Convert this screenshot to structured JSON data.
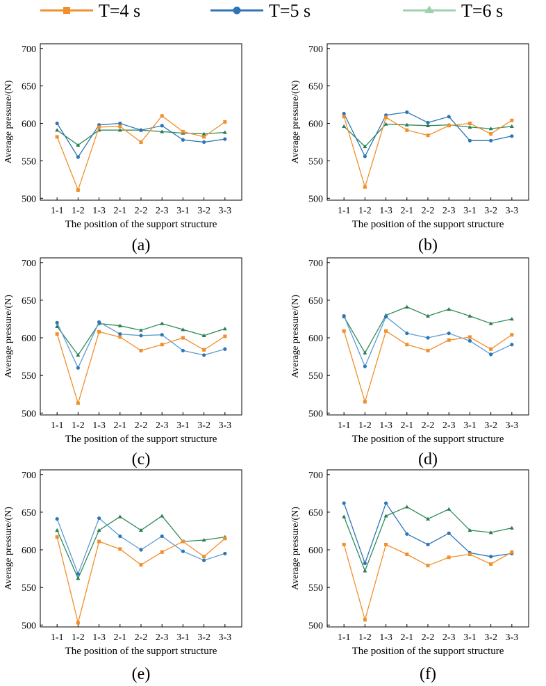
{
  "legend": [
    {
      "label": "T=4 s",
      "color": "#f28e2b",
      "marker": "square"
    },
    {
      "label": "T=5 s",
      "color": "#2e75b6",
      "marker": "circle"
    },
    {
      "label": "T=6 s",
      "color": "#9fd0b0",
      "marker": "triangle"
    }
  ],
  "chart_data": [
    {
      "type": "line",
      "panel_label": "(a)",
      "xlabel": "The position of the support structure",
      "ylabel": "Average pressure/(N)",
      "categories": [
        "1-1",
        "1-2",
        "1-3",
        "2-1",
        "2-2",
        "2-3",
        "3-1",
        "3-2",
        "3-3"
      ],
      "ylim": [
        500,
        700
      ],
      "yticks": [
        500,
        550,
        600,
        650,
        700
      ],
      "series": [
        {
          "name": "T=4 s",
          "color": "#f28e2b",
          "line_color": "#f28e2b",
          "marker": "square",
          "values": [
            582,
            511,
            595,
            596,
            575,
            610,
            589,
            582,
            602
          ]
        },
        {
          "name": "T=5 s",
          "color": "#2e75b6",
          "line_color": "#2e75b6",
          "marker": "circle",
          "values": [
            600,
            555,
            598,
            600,
            591,
            597,
            578,
            575,
            579
          ]
        },
        {
          "name": "T=6 s",
          "color": "#2a7a52",
          "line_color": "#2e8b57",
          "marker": "triangle",
          "values": [
            591,
            571,
            591,
            591,
            591,
            589,
            587,
            586,
            588
          ]
        }
      ]
    },
    {
      "type": "line",
      "panel_label": "(b)",
      "xlabel": "The position of the support structure",
      "ylabel": "Average pressure/(N)",
      "categories": [
        "1-1",
        "1-2",
        "1-3",
        "2-1",
        "2-2",
        "2-3",
        "3-1",
        "3-2",
        "3-3"
      ],
      "ylim": [
        500,
        700
      ],
      "yticks": [
        500,
        550,
        600,
        650,
        700
      ],
      "series": [
        {
          "name": "T=4 s",
          "color": "#f28e2b",
          "line_color": "#f28e2b",
          "marker": "square",
          "values": [
            609,
            515,
            608,
            591,
            584,
            597,
            600,
            586,
            604
          ]
        },
        {
          "name": "T=5 s",
          "color": "#2e75b6",
          "line_color": "#2e75b6",
          "marker": "circle",
          "values": [
            613,
            556,
            611,
            615,
            601,
            609,
            577,
            577,
            583
          ]
        },
        {
          "name": "T=6 s",
          "color": "#2a7a52",
          "line_color": "#2e8b57",
          "marker": "triangle",
          "values": [
            596,
            569,
            599,
            598,
            597,
            598,
            595,
            593,
            596
          ]
        }
      ]
    },
    {
      "type": "line",
      "panel_label": "(c)",
      "xlabel": "The position of the support structure",
      "ylabel": "Average pressure/(N)",
      "categories": [
        "1-1",
        "1-2",
        "1-3",
        "2-1",
        "2-2",
        "2-3",
        "3-1",
        "3-2",
        "3-3"
      ],
      "ylim": [
        500,
        700
      ],
      "yticks": [
        500,
        550,
        600,
        650,
        700
      ],
      "series": [
        {
          "name": "T=4 s",
          "color": "#f28e2b",
          "line_color": "#f28e2b",
          "marker": "square",
          "values": [
            605,
            513,
            608,
            601,
            583,
            591,
            600,
            584,
            602
          ]
        },
        {
          "name": "T=5 s",
          "color": "#2e75b6",
          "line_color": "#5b9bd5",
          "marker": "circle",
          "values": [
            620,
            560,
            621,
            605,
            603,
            604,
            583,
            577,
            585
          ]
        },
        {
          "name": "T=6 s",
          "color": "#2a7a52",
          "line_color": "#2e8b57",
          "marker": "triangle",
          "values": [
            615,
            577,
            619,
            616,
            610,
            619,
            611,
            603,
            612
          ]
        }
      ]
    },
    {
      "type": "line",
      "panel_label": "(d)",
      "xlabel": "The position of the support structure",
      "ylabel": "Average pressure/(N)",
      "categories": [
        "1-1",
        "1-2",
        "1-3",
        "2-1",
        "2-2",
        "2-3",
        "3-1",
        "3-2",
        "3-3"
      ],
      "ylim": [
        500,
        700
      ],
      "yticks": [
        500,
        550,
        600,
        650,
        700
      ],
      "series": [
        {
          "name": "T=4 s",
          "color": "#f28e2b",
          "line_color": "#f28e2b",
          "marker": "square",
          "values": [
            609,
            515,
            609,
            591,
            583,
            597,
            601,
            585,
            604
          ]
        },
        {
          "name": "T=5 s",
          "color": "#2e75b6",
          "line_color": "#5b9bd5",
          "marker": "circle",
          "values": [
            629,
            562,
            628,
            606,
            600,
            606,
            596,
            578,
            591
          ]
        },
        {
          "name": "T=6 s",
          "color": "#2a7a52",
          "line_color": "#2e8b57",
          "marker": "triangle",
          "values": [
            628,
            580,
            630,
            641,
            629,
            638,
            629,
            619,
            625
          ]
        }
      ]
    },
    {
      "type": "line",
      "panel_label": "(e)",
      "xlabel": "The position of the support structure",
      "ylabel": "Average pressure/(N)",
      "categories": [
        "1-1",
        "1-2",
        "1-3",
        "2-1",
        "2-2",
        "2-3",
        "3-1",
        "3-2",
        "3-3"
      ],
      "ylim": [
        500,
        700
      ],
      "yticks": [
        500,
        550,
        600,
        650,
        700
      ],
      "series": [
        {
          "name": "T=4 s",
          "color": "#f28e2b",
          "line_color": "#f28e2b",
          "marker": "square",
          "values": [
            617,
            503,
            611,
            601,
            580,
            597,
            611,
            591,
            615
          ]
        },
        {
          "name": "T=5 s",
          "color": "#2e75b6",
          "line_color": "#5b9bd5",
          "marker": "circle",
          "values": [
            641,
            568,
            642,
            618,
            600,
            618,
            598,
            586,
            595
          ]
        },
        {
          "name": "T=6 s",
          "color": "#2a7a52",
          "line_color": "#2e8b57",
          "marker": "triangle",
          "values": [
            626,
            562,
            626,
            644,
            626,
            645,
            611,
            613,
            617
          ]
        }
      ]
    },
    {
      "type": "line",
      "panel_label": "(f)",
      "xlabel": "The position of the support structure",
      "ylabel": "Average pressure/(N)",
      "categories": [
        "1-1",
        "1-2",
        "1-3",
        "2-1",
        "2-2",
        "2-3",
        "3-1",
        "3-2",
        "3-3"
      ],
      "ylim": [
        500,
        700
      ],
      "yticks": [
        500,
        550,
        600,
        650,
        700
      ],
      "series": [
        {
          "name": "T=4 s",
          "color": "#f28e2b",
          "line_color": "#f28e2b",
          "marker": "square",
          "values": [
            607,
            507,
            607,
            594,
            579,
            590,
            594,
            581,
            597
          ]
        },
        {
          "name": "T=5 s",
          "color": "#2e75b6",
          "line_color": "#2e75b6",
          "marker": "circle",
          "values": [
            662,
            582,
            662,
            621,
            607,
            622,
            596,
            591,
            595
          ]
        },
        {
          "name": "T=6 s",
          "color": "#2a7a52",
          "line_color": "#2e8b57",
          "marker": "triangle",
          "values": [
            644,
            572,
            645,
            657,
            641,
            654,
            626,
            623,
            629
          ]
        }
      ]
    }
  ]
}
